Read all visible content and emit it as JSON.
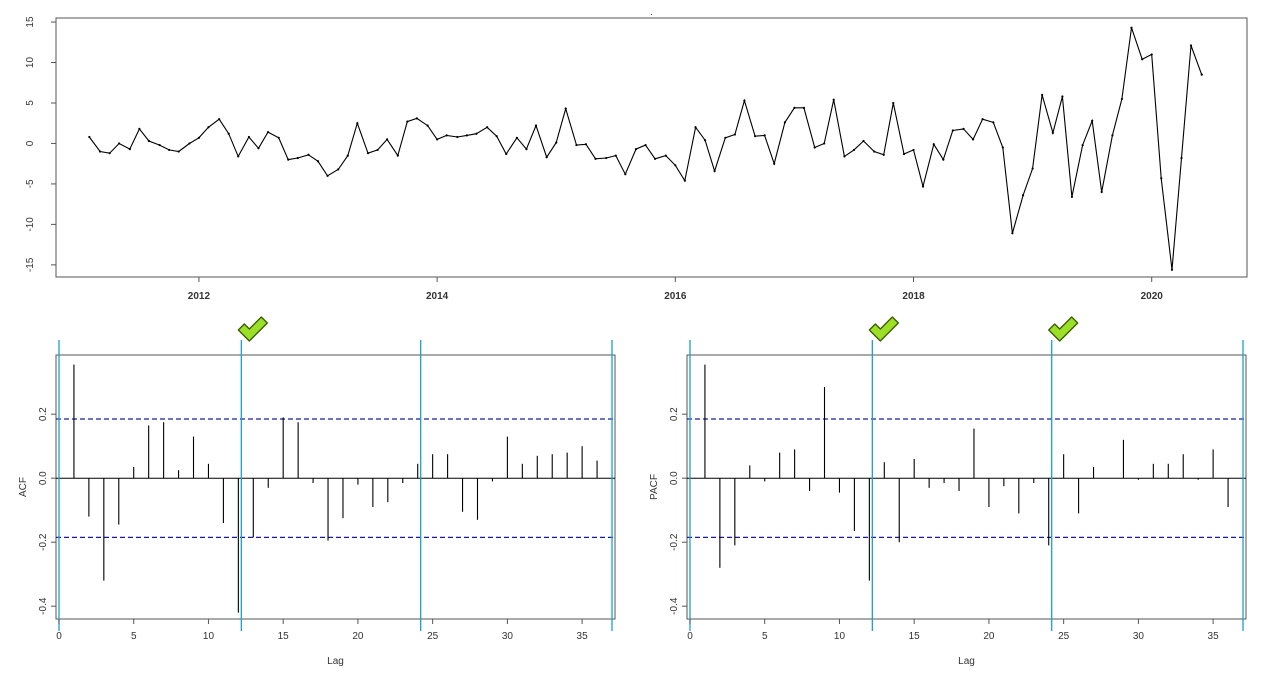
{
  "chart_data": [
    {
      "type": "line",
      "title": "",
      "xlabel": "",
      "ylabel": "",
      "x_ticks": [
        "2012",
        "2014",
        "2016",
        "2018",
        "2020"
      ],
      "x_tick_values": [
        2012,
        2014,
        2016,
        2018,
        2020
      ],
      "y_ticks": [
        "-15",
        "-10",
        "-5",
        "0",
        "5",
        "10",
        "15"
      ],
      "y_tick_values": [
        -15,
        -10,
        -5,
        0,
        5,
        10,
        15
      ],
      "xlim": [
        2010.8,
        2020.8
      ],
      "ylim": [
        -16.5,
        15.5
      ],
      "grid": false,
      "series": [
        {
          "x": [
            2011.08,
            2011.17,
            2011.25,
            2011.33,
            2011.42,
            2011.5,
            2011.58,
            2011.67,
            2011.75,
            2011.83,
            2011.92,
            2012.0,
            2012.08,
            2012.17,
            2012.25,
            2012.33,
            2012.42,
            2012.5,
            2012.58,
            2012.67,
            2012.75,
            2012.83,
            2012.92,
            2013.0,
            2013.08,
            2013.17,
            2013.25,
            2013.33,
            2013.42,
            2013.5,
            2013.58,
            2013.67,
            2013.75,
            2013.83,
            2013.92,
            2014.0,
            2014.08,
            2014.17,
            2014.25,
            2014.33,
            2014.42,
            2014.5,
            2014.58,
            2014.67,
            2014.75,
            2014.83,
            2014.92,
            2015.0,
            2015.08,
            2015.17,
            2015.25,
            2015.33,
            2015.42,
            2015.5,
            2015.58,
            2015.67,
            2015.75,
            2015.83,
            2015.92,
            2016.0,
            2016.08,
            2016.17,
            2016.25,
            2016.33,
            2016.42,
            2016.5,
            2016.58,
            2016.67,
            2016.75,
            2016.83,
            2016.92,
            2017.0,
            2017.08,
            2017.17,
            2017.25,
            2017.33,
            2017.42,
            2017.5,
            2017.58,
            2017.67,
            2017.75,
            2017.83,
            2017.92,
            2018.0,
            2018.08,
            2018.17,
            2018.25,
            2018.33,
            2018.42,
            2018.5,
            2018.58,
            2018.67,
            2018.75,
            2018.83,
            2018.92,
            2019.0,
            2019.08,
            2019.17,
            2019.25,
            2019.33,
            2019.42,
            2019.5,
            2019.58,
            2019.67,
            2019.75,
            2019.83,
            2019.92,
            2020.0,
            2020.08,
            2020.17,
            2020.25,
            2020.33,
            2020.42
          ],
          "y": [
            0.8,
            -1.0,
            -1.2,
            0.0,
            -0.7,
            1.8,
            0.3,
            -0.2,
            -0.8,
            -1.0,
            0.0,
            0.7,
            2.0,
            3.0,
            1.2,
            -1.6,
            0.8,
            -0.6,
            1.4,
            0.7,
            -2.0,
            -1.8,
            -1.4,
            -2.2,
            -4.0,
            -3.2,
            -1.5,
            2.5,
            -1.2,
            -0.8,
            0.5,
            -1.5,
            2.7,
            3.1,
            2.2,
            0.5,
            1.0,
            0.8,
            1.0,
            1.2,
            2.0,
            0.9,
            -1.3,
            0.7,
            -0.7,
            2.2,
            -1.7,
            0.1,
            4.3,
            -0.2,
            -0.1,
            -1.9,
            -1.8,
            -1.5,
            -3.8,
            -0.7,
            -0.2,
            -1.9,
            -1.5,
            -2.7,
            -4.6,
            2.0,
            0.4,
            -3.4,
            0.7,
            1.1,
            5.3,
            0.9,
            1.0,
            -2.5,
            2.6,
            4.4,
            4.4,
            -0.5,
            0.0,
            5.4,
            -1.6,
            -0.8,
            0.3,
            -1.0,
            -1.4,
            5.0,
            -1.3,
            -0.8,
            -5.3,
            -0.1,
            -2.0,
            1.6,
            1.8,
            0.5,
            3.0,
            2.6,
            -0.5,
            -11.1,
            -6.4,
            -3.1,
            6.0,
            1.3,
            5.8,
            -6.6,
            -0.2,
            2.8,
            -6.0,
            1.0,
            5.5,
            14.3,
            10.4,
            11.0,
            -4.3,
            -15.6,
            -1.8,
            12.1,
            8.5
          ]
        }
      ]
    },
    {
      "type": "bar",
      "title": "",
      "xlabel": "Lag",
      "ylabel": "ACF",
      "x_ticks": [
        "0",
        "5",
        "10",
        "15",
        "20",
        "25",
        "30",
        "35"
      ],
      "x_tick_values": [
        0,
        5,
        10,
        15,
        20,
        25,
        30,
        35
      ],
      "y_ticks": [
        "-0.4",
        "-0.2",
        "0.0",
        "0.2"
      ],
      "y_tick_values": [
        -0.4,
        -0.2,
        0.0,
        0.2
      ],
      "xlim": [
        -0.2,
        37.2
      ],
      "ylim": [
        -0.44,
        0.385
      ],
      "lags": [
        1,
        2,
        3,
        4,
        5,
        6,
        7,
        8,
        9,
        10,
        11,
        12,
        13,
        14,
        15,
        16,
        17,
        18,
        19,
        20,
        21,
        22,
        23,
        24,
        25,
        26,
        27,
        28,
        29,
        30,
        31,
        32,
        33,
        34,
        35,
        36
      ],
      "values": [
        0.355,
        -0.12,
        -0.32,
        -0.145,
        0.035,
        0.165,
        0.175,
        0.025,
        0.13,
        0.045,
        -0.14,
        -0.42,
        -0.185,
        -0.03,
        0.19,
        0.175,
        -0.015,
        -0.195,
        -0.125,
        -0.02,
        -0.09,
        -0.075,
        -0.015,
        0.045,
        0.075,
        0.075,
        -0.105,
        -0.13,
        -0.01,
        0.13,
        0.045,
        0.07,
        0.075,
        0.08,
        0.1,
        0.055
      ],
      "confidence_bound": 0.185,
      "vertical_markers": [
        0,
        12.2,
        24.2,
        37
      ],
      "checkmarks_at": [
        12.2
      ]
    },
    {
      "type": "bar",
      "title": "",
      "xlabel": "Lag",
      "ylabel": "PACF",
      "x_ticks": [
        "0",
        "5",
        "10",
        "15",
        "20",
        "25",
        "30",
        "35"
      ],
      "x_tick_values": [
        0,
        5,
        10,
        15,
        20,
        25,
        30,
        35
      ],
      "y_ticks": [
        "-0.4",
        "-0.2",
        "0.0",
        "0.2"
      ],
      "y_tick_values": [
        -0.4,
        -0.2,
        0.0,
        0.2
      ],
      "xlim": [
        -0.2,
        37.2
      ],
      "ylim": [
        -0.44,
        0.385
      ],
      "lags": [
        1,
        2,
        3,
        4,
        5,
        6,
        7,
        8,
        9,
        10,
        11,
        12,
        13,
        14,
        15,
        16,
        17,
        18,
        19,
        20,
        21,
        22,
        23,
        24,
        25,
        26,
        27,
        28,
        29,
        30,
        31,
        32,
        33,
        34,
        35,
        36
      ],
      "values": [
        0.355,
        -0.28,
        -0.21,
        0.04,
        -0.01,
        0.08,
        0.09,
        -0.04,
        0.285,
        -0.045,
        -0.165,
        -0.32,
        0.05,
        -0.2,
        0.06,
        -0.03,
        -0.015,
        -0.04,
        0.155,
        -0.09,
        -0.025,
        -0.11,
        -0.015,
        -0.21,
        0.075,
        -0.11,
        0.035,
        0.0,
        0.12,
        -0.005,
        0.045,
        0.045,
        0.075,
        -0.005,
        0.09,
        -0.09
      ],
      "confidence_bound": 0.185,
      "vertical_markers": [
        0,
        12.2,
        24.2,
        37
      ],
      "checkmarks_at": [
        12.2,
        24.2
      ]
    }
  ],
  "colors": {
    "line": "#000000",
    "axis": "#555555",
    "confidence": "#1a1aa6",
    "marker": "#1d9fd0",
    "check_fill": "#9be026",
    "check_stroke": "#3a5a00"
  },
  "icons": [
    "checkmark-icon"
  ],
  "top_dot": "."
}
